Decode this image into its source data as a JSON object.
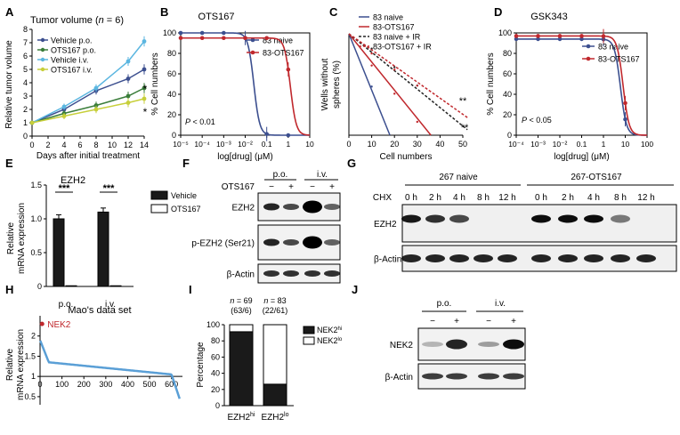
{
  "panel_letters": [
    "A",
    "B",
    "C",
    "D",
    "E",
    "F",
    "G",
    "H",
    "I",
    "J"
  ],
  "chart_data": [
    {
      "panel": "A",
      "type": "line",
      "title": "Tumor volume (n = 6)",
      "title_main": "Tumor volume (",
      "title_n": "n",
      "title_rest": " = 6)",
      "xlabel": "Days after initial treatment",
      "ylabel": "Relative tumor volume",
      "x": [
        0,
        4,
        8,
        12,
        14
      ],
      "xticks": [
        "0",
        "2",
        "4",
        "6",
        "8",
        "10",
        "12",
        "14"
      ],
      "yticks": [
        "0",
        "1",
        "2",
        "3",
        "4",
        "5",
        "6",
        "7",
        "8"
      ],
      "xlim": [
        0,
        14
      ],
      "ylim": [
        0,
        8
      ],
      "series": [
        {
          "name": "Vehicle p.o.",
          "color": "#3c4f8f",
          "values": [
            1,
            2.0,
            3.4,
            4.3,
            5.0
          ]
        },
        {
          "name": "OTS167 p.o.",
          "color": "#3a7d3a",
          "values": [
            1,
            1.7,
            2.3,
            3.0,
            3.6
          ]
        },
        {
          "name": "Vehicle i.v.",
          "color": "#5bb6e0",
          "values": [
            1,
            2.2,
            3.6,
            5.6,
            7.1
          ]
        },
        {
          "name": "OTS167 i.v.",
          "color": "#c7cf3a",
          "values": [
            1,
            1.5,
            2.0,
            2.5,
            2.8
          ]
        }
      ],
      "annotations": [
        "*",
        "*"
      ]
    },
    {
      "panel": "B",
      "type": "line",
      "title": "OTS167",
      "xlabel": "log[drug] (μM)",
      "ylabel": "% Cell numbers",
      "xticks": [
        "10⁻⁵",
        "10⁻⁴",
        "10⁻³",
        "10⁻²",
        "0.1",
        "1",
        "10"
      ],
      "xlim": [
        -5,
        1
      ],
      "ylim": [
        0,
        100
      ],
      "yticks": [
        "0",
        "20",
        "40",
        "60",
        "80",
        "100"
      ],
      "annotation": "P < 0.01",
      "annotation_p": "P",
      "annotation_rest": " < 0.01",
      "series": [
        {
          "name": "83 naive",
          "color": "#3c4f8f",
          "ic50": -1.6,
          "top": 100
        },
        {
          "name": "83-OTS167",
          "color": "#c0282d",
          "ic50": 0.1,
          "top": 95
        }
      ]
    },
    {
      "panel": "C",
      "type": "line",
      "xlabel": "Cell numbers",
      "ylabel": "Wells without spheres (%)",
      "xticks": [
        "0",
        "10",
        "20",
        "30",
        "40",
        "50"
      ],
      "xlim": [
        0,
        50
      ],
      "ylim": [
        0,
        100
      ],
      "series": [
        {
          "name": "83 naive",
          "color": "#3c4f8f",
          "dash": false,
          "x_at_zero": 18
        },
        {
          "name": "83-OTS167",
          "color": "#c0282d",
          "dash": false,
          "x_at_zero": 36
        },
        {
          "name": "83 naive + IR",
          "color": "#222222",
          "dash": true,
          "x_at_zero": 55
        },
        {
          "name": "83-OTS167 + IR",
          "color": "#c0282d",
          "dash": true,
          "x_at_zero": 63
        }
      ],
      "annotations": [
        "**",
        "**"
      ]
    },
    {
      "panel": "D",
      "type": "line",
      "title": "GSK343",
      "xlabel": "log[drug] (μM)",
      "ylabel": "% Cell numbers",
      "xticks": [
        "10⁻⁴",
        "10⁻³",
        "10⁻²",
        "0.1",
        "1",
        "10",
        "100"
      ],
      "xlim": [
        -4,
        2
      ],
      "ylim": [
        0,
        100
      ],
      "yticks": [
        "0",
        "20",
        "40",
        "60",
        "80",
        "100"
      ],
      "annotation": "P < 0.05",
      "annotation_p": "P",
      "annotation_rest": " < 0.05",
      "series": [
        {
          "name": "83 naive",
          "color": "#3c4f8f",
          "ic50": 0.78,
          "top": 94
        },
        {
          "name": "83-OTS167",
          "color": "#c0282d",
          "ic50": 0.9,
          "top": 97
        }
      ]
    },
    {
      "panel": "E",
      "type": "bar",
      "title": "EZH2",
      "ylabel": "Relative mRNA expression",
      "categories": [
        "p.o.",
        "i.v."
      ],
      "ylim": [
        0,
        1.5
      ],
      "yticks": [
        "0",
        "0.5",
        "1.0",
        "1.5"
      ],
      "series": [
        {
          "name": "Vehicle",
          "color": "#1a1a1a",
          "values": [
            1.0,
            1.1
          ]
        },
        {
          "name": "OTS167",
          "color": "#ffffff",
          "values": [
            0.01,
            0.01
          ]
        }
      ],
      "annotations": [
        "***",
        "***"
      ]
    },
    {
      "panel": "H",
      "type": "line",
      "title": "Mao's data set",
      "ylabel": "Relative mRNA expression",
      "xticks": [
        "0",
        "100",
        "200",
        "300",
        "400",
        "500",
        "600"
      ],
      "yticks": [
        "0.5",
        "1",
        "1.5",
        "2"
      ],
      "xlim": [
        0,
        650
      ],
      "ylim": [
        0.3,
        2.5
      ],
      "highlight": {
        "label": "NEK2",
        "x": 1,
        "y": 2.3,
        "color": "#c0282d"
      },
      "series": [
        {
          "name": "",
          "color": "#5a9fd6"
        }
      ]
    },
    {
      "panel": "I",
      "type": "bar",
      "ylabel": "Percentage",
      "categories": [
        "EZH2hi",
        "EZH2lo"
      ],
      "category_base": "EZH2",
      "category_sups": [
        "hi",
        "lo"
      ],
      "group_labels": [
        "n = 69\n(63/6)",
        "n = 83\n(22/61)"
      ],
      "group_lines": [
        [
          "n = 69",
          "(63/6)"
        ],
        [
          "n = 83",
          "(22/61)"
        ]
      ],
      "ylim": [
        0,
        100
      ],
      "yticks": [
        "0",
        "20",
        "40",
        "60",
        "80",
        "100"
      ],
      "series": [
        {
          "name": "NEK2hi",
          "color": "#1a1a1a",
          "values": [
            91.3,
            26.5
          ]
        },
        {
          "name": "NEK2lo",
          "color": "#ffffff",
          "values": [
            8.7,
            73.5
          ]
        }
      ],
      "legend_base": "NEK2",
      "legend_sups": [
        "hi",
        "lo"
      ]
    }
  ],
  "blots": {
    "F": {
      "groups": [
        "p.o.",
        "i.v."
      ],
      "treatment": "OTS167",
      "signs": [
        "−",
        "+",
        "−",
        "+"
      ],
      "rows": [
        "EZH2",
        "p-EZH2 (Ser21)",
        "β-Actin"
      ]
    },
    "G": {
      "groups": [
        "267 naive",
        "267-OTS167"
      ],
      "treatment": "CHX",
      "times": [
        "0 h",
        "2 h",
        "4 h",
        "8 h",
        "12 h",
        "0 h",
        "2 h",
        "4 h",
        "8 h",
        "12 h"
      ],
      "rows": [
        "EZH2",
        "β-Actin"
      ]
    },
    "J": {
      "groups": [
        "p.o.",
        "i.v."
      ],
      "signs": [
        "−",
        "+",
        "−",
        "+"
      ],
      "rows": [
        "NEK2",
        "β-Actin"
      ]
    }
  }
}
